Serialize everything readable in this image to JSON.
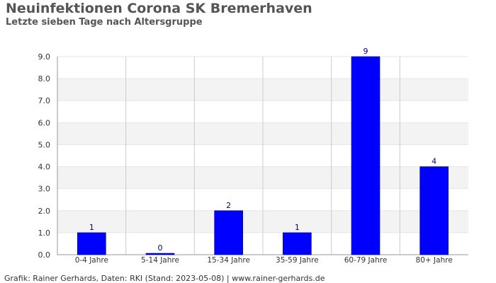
{
  "chart_data": {
    "type": "bar",
    "title": "Neuinfektionen Corona SK Bremerhaven",
    "subtitle": "Letzte sieben Tage nach Altersgruppe",
    "categories": [
      "0-4 Jahre",
      "5-14 Jahre",
      "15-34 Jahre",
      "35-59 Jahre",
      "60-79 Jahre",
      "80+ Jahre"
    ],
    "values": [
      1,
      0,
      2,
      1,
      9,
      4
    ],
    "data_labels": [
      "1",
      "0",
      "2",
      "1",
      "9",
      "4"
    ],
    "ylim": [
      0,
      9
    ],
    "yticks": [
      "0.0",
      "1.0",
      "2.0",
      "3.0",
      "4.0",
      "5.0",
      "6.0",
      "7.0",
      "8.0",
      "9.0"
    ],
    "xlabel": "",
    "ylabel": "",
    "grid": true,
    "legend": "none",
    "colors": {
      "bar": "#0000ff",
      "label": "#000080",
      "band": "#f3f3f3",
      "grid": "#cccccc",
      "axis": "#999999",
      "tick_text": "#333333"
    }
  },
  "footer": "Grafik: Rainer Gerhards, Daten: RKI (Stand: 2023-05-08) | www.rainer-gerhards.de"
}
